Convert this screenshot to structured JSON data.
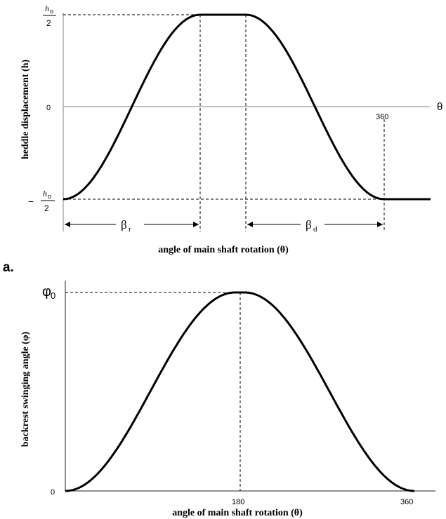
{
  "panel_a": {
    "letter": "a.",
    "y_top_num": "h",
    "y_top_sub": "o",
    "y_top_den": "2",
    "y_zero": "0",
    "y_bot_sign": "−",
    "y_bot_num": "h",
    "y_bot_sub": "o",
    "y_bot_den": "2",
    "x_tick_360": "360",
    "x_symbol": "θ",
    "ylabel": "heddle displacement (h)",
    "xlabel": "angle of main shaft rotation (θ)",
    "beta_r": "β",
    "beta_r_sub": "r",
    "beta_d": "β",
    "beta_d_sub": "d"
  },
  "panel_b": {
    "y_top_sym": "φ",
    "y_top_sub": "0",
    "y_zero": "0",
    "x_tick_180": "180",
    "x_tick_360": "360",
    "ylabel": "backrest swinging angle (φ)",
    "xlabel": "angle of main shaft rotation (θ)"
  },
  "chart_data": [
    {
      "type": "line",
      "x": [
        0,
        60,
        120,
        170,
        200,
        260,
        320,
        380
      ],
      "series": [
        {
          "values": [
            -0.5,
            -0.01,
            0.48,
            0.5,
            0.5,
            0.01,
            -0.49,
            -0.5
          ]
        }
      ],
      "xlabel": "angle of main shaft rotation (θ)",
      "ylabel": "heddle displacement (h)",
      "yticks": [
        "h₀/2",
        "0",
        "−h₀/2"
      ],
      "xticks": [
        "360"
      ],
      "annotations": [
        "βr",
        "βd"
      ],
      "grid": false
    },
    {
      "type": "line",
      "x": [
        0,
        45,
        90,
        135,
        180,
        225,
        270,
        315,
        360
      ],
      "series": [
        {
          "values": [
            0,
            0.15,
            0.5,
            0.85,
            1,
            0.85,
            0.5,
            0.15,
            0
          ]
        }
      ],
      "xlabel": "angle of main shaft rotation (θ)",
      "ylabel": "backrest swinging angle (φ)",
      "yticks": [
        "0",
        "φ₀"
      ],
      "xticks": [
        "180",
        "360"
      ],
      "grid": false
    }
  ]
}
